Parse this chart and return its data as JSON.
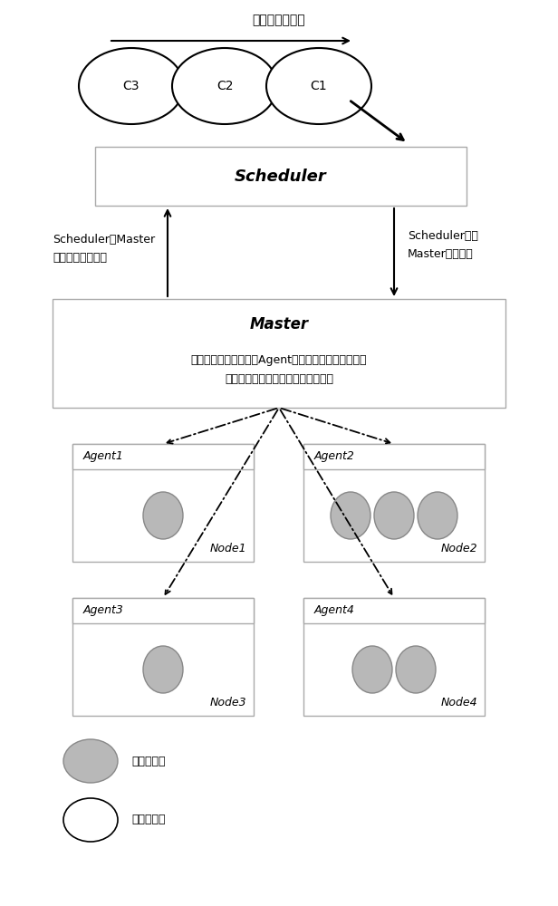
{
  "title_queue": "待调度容器队列",
  "containers_queue": [
    "C3",
    "C2",
    "C1"
  ],
  "scheduler_label": "Scheduler",
  "master_label": "Master",
  "master_desc_line1": "定时从集群中各节点的Agent同步节点信息和已部署的",
  "master_desc_line2": "容器信息，并接收新创建容器的请求",
  "left_arrow_label_line1": "Scheduler从Master",
  "left_arrow_label_line2": "同步集群状态信息",
  "right_arrow_label_line1": "Scheduler通知",
  "right_arrow_label_line2": "Master调度结果",
  "legend_deployed": "已部署容器",
  "legend_pending": "待部署容器",
  "bg_color": "#ffffff",
  "circle_gray_fill": "#b8b8b8",
  "circle_gray_edge": "#888888",
  "font_size_main": 9,
  "font_size_title": 10,
  "font_size_scheduler": 13,
  "font_size_master": 12,
  "font_size_agent": 9,
  "font_size_node": 9,
  "font_size_container": 10
}
